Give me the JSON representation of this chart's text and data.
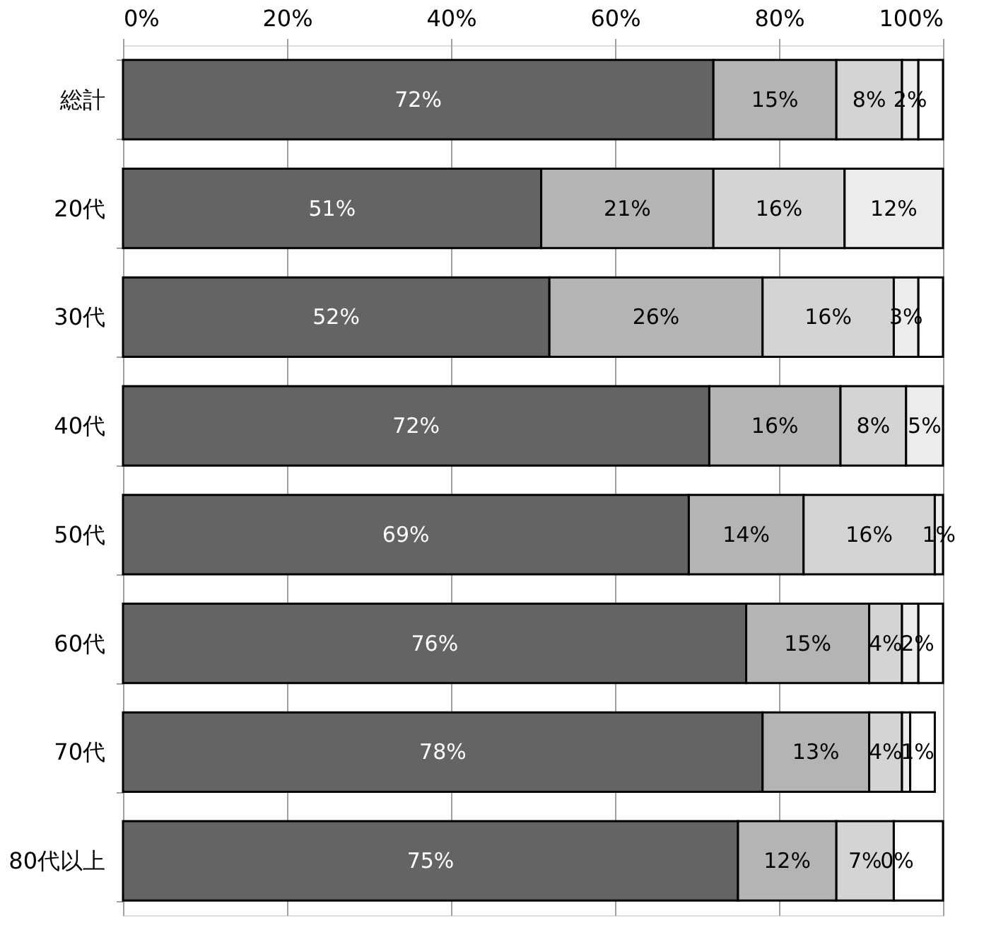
{
  "chart_data": {
    "type": "bar",
    "orientation": "horizontal",
    "stacked": true,
    "categories": [
      "総計",
      "20代",
      "30代",
      "40代",
      "50代",
      "60代",
      "70代",
      "80代以上"
    ],
    "series": [
      {
        "color": "#646464",
        "values": [
          72,
          51,
          52,
          71.5,
          69,
          76,
          78,
          75
        ],
        "value_labels": [
          "72%",
          "51%",
          "52%",
          "72%",
          "69%",
          "76%",
          "78%",
          "75%"
        ]
      },
      {
        "color": "#b4b4b4",
        "values": [
          15,
          21,
          26,
          16,
          14,
          15,
          13,
          12
        ],
        "value_labels": [
          "15%",
          "21%",
          "26%",
          "16%",
          "14%",
          "15%",
          "13%",
          "12%"
        ]
      },
      {
        "color": "#d4d4d4",
        "values": [
          8,
          16,
          16,
          8,
          16,
          4,
          4,
          7
        ],
        "value_labels": [
          "8%",
          "16%",
          "16%",
          "8%",
          "16%",
          "4%",
          "4%",
          "7%"
        ]
      },
      {
        "color": "#ececec",
        "values": [
          2,
          12,
          3,
          4.5,
          1,
          2,
          1,
          0
        ],
        "value_labels": [
          "2%",
          "12%",
          "3%",
          "5%",
          "1%",
          "2%",
          "1%",
          "0%"
        ]
      },
      {
        "color": "#ffffff",
        "values": [
          3,
          0,
          3,
          0,
          0,
          3,
          3,
          6
        ]
      }
    ],
    "xlim": [
      0,
      100
    ],
    "xticks": [
      {
        "value": 0,
        "label": "0%"
      },
      {
        "value": 20,
        "label": "20%"
      },
      {
        "value": 40,
        "label": "40%"
      },
      {
        "value": 60,
        "label": "60%"
      },
      {
        "value": 80,
        "label": "80%"
      },
      {
        "value": 100,
        "label": "100%"
      }
    ],
    "grid": "x",
    "legend": false
  }
}
